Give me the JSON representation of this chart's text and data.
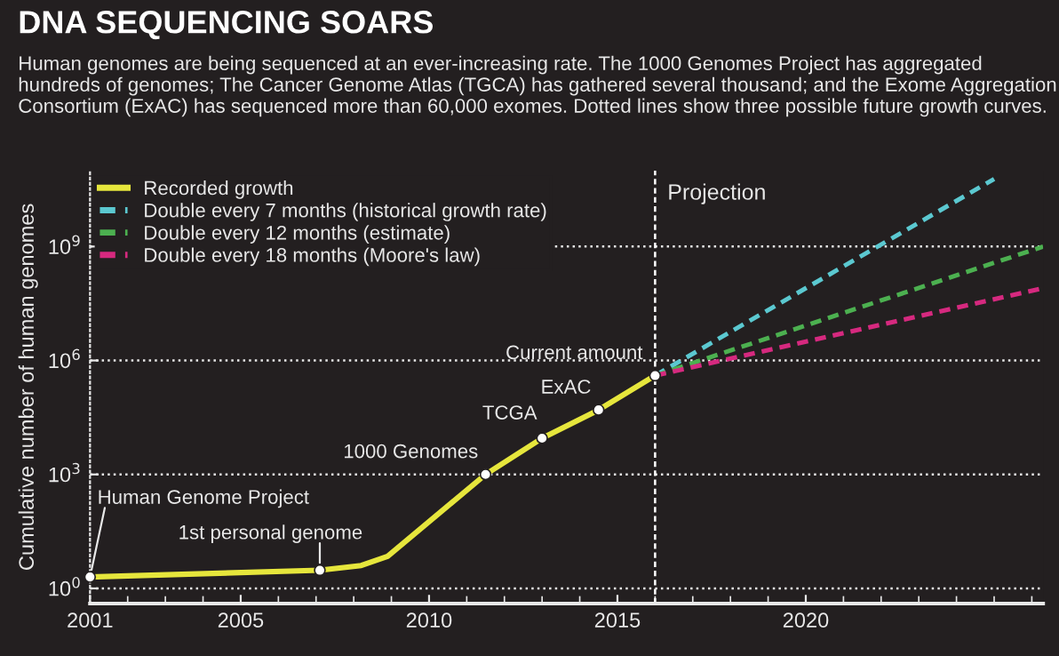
{
  "chart_data": {
    "type": "line",
    "title": "DNA SEQUENCING SOARS",
    "subtitle": "Human genomes are being sequenced at an ever-increasing rate. The 1000 Genomes Project has aggregated hundreds of genomes; The Cancer Genome Atlas (TGCA) has gathered several thousand; and the Exome Aggregation Consortium (ExAC) has sequenced more than 60,000 exomes. Dotted lines show three possible future growth curves.",
    "ylabel": "Cumulative number of human genomes",
    "log": "y",
    "grid": "y",
    "legend": "top left",
    "xlim": [
      2001,
      2026.3
    ],
    "xticks": [
      2001,
      2005,
      2010,
      2015,
      2020
    ],
    "ylim": [
      0.4,
      100000000000
    ],
    "yticks": [
      {
        "value": 1,
        "label": "10$^{0}$"
      },
      {
        "value": 1000,
        "label": "10$^{3}$"
      },
      {
        "value": 1000000,
        "label": "10$^{6}$"
      },
      {
        "value": 1000000000,
        "label": "10$^{9}$"
      }
    ],
    "series": [
      {
        "name": "Recorded growth",
        "color": "#e6e63c",
        "line_style": "solid",
        "x": [
          2001,
          2007.1,
          2008.2,
          2008.9,
          2011.5,
          2013.0,
          2014.5,
          2016.0
        ],
        "values": [
          2,
          3,
          4,
          7,
          1000,
          9000,
          50000,
          400000
        ]
      },
      {
        "name": "Double every 7 months (historical growth rate)",
        "color": "#5bc8d0",
        "line_style": "dashed",
        "x": [
          2016.0,
          2025.0
        ],
        "values": [
          400000,
          60000000000
        ]
      },
      {
        "name": "Double every 12 months (estimate)",
        "color": "#4cb050",
        "line_style": "dashed",
        "x": [
          2016.0,
          2026.3
        ],
        "values": [
          400000,
          1000000000
        ]
      },
      {
        "name": "Double every 18 months (Moore's law)",
        "color": "#d6297f",
        "line_style": "dashed",
        "x": [
          2016.0,
          2026.3
        ],
        "values": [
          400000,
          80000000
        ]
      }
    ],
    "ref_lines": [
      {
        "axis": "x",
        "value": 2016.0,
        "label": "Projection",
        "color": "#ffffff",
        "line_style": "dashed"
      }
    ],
    "annotations": [
      {
        "text": "Human Genome Project",
        "x": 2001,
        "y": 2
      },
      {
        "text": "1st personal genome",
        "x": 2007.1,
        "y": 3
      },
      {
        "text": "1000 Genomes",
        "x": 2011.5,
        "y": 1000
      },
      {
        "text": "TCGA",
        "x": 2013.0,
        "y": 9000
      },
      {
        "text": "ExAC",
        "x": 2014.5,
        "y": 50000
      },
      {
        "text": "Current amount",
        "x": 2016.0,
        "y": 400000
      }
    ]
  }
}
